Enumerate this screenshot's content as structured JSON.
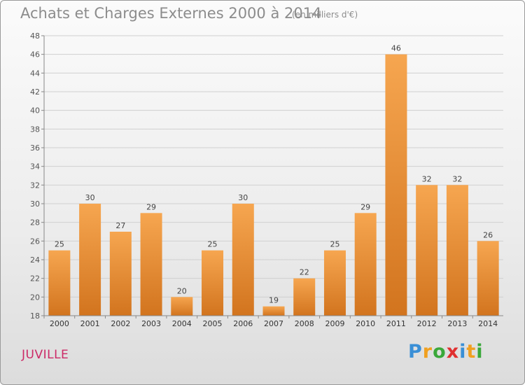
{
  "header": {
    "title": "Achats et Charges Externes 2000 à 2014",
    "subtitle": "(en milliers d'€)"
  },
  "footer": {
    "commune": "JUVILLE",
    "logo_letters": [
      {
        "ch": "P",
        "color": "#3a8fd6"
      },
      {
        "ch": "r",
        "color": "#f0a020"
      },
      {
        "ch": "o",
        "color": "#3aa83a"
      },
      {
        "ch": "x",
        "color": "#e03030"
      },
      {
        "ch": "i",
        "color": "#3a8fd6"
      },
      {
        "ch": "t",
        "color": "#f0a020"
      },
      {
        "ch": "i",
        "color": "#3aa83a"
      }
    ]
  },
  "chart_data": {
    "type": "bar",
    "title": "Achats et Charges Externes 2000 à 2014",
    "subtitle": "(en milliers d'€)",
    "xlabel": "",
    "ylabel": "",
    "categories": [
      "2000",
      "2001",
      "2002",
      "2003",
      "2004",
      "2005",
      "2006",
      "2007",
      "2008",
      "2009",
      "2010",
      "2011",
      "2012",
      "2013",
      "2014"
    ],
    "values": [
      25,
      30,
      27,
      29,
      20,
      25,
      30,
      19,
      22,
      25,
      29,
      46,
      32,
      32,
      26
    ],
    "ylim": [
      18,
      48
    ],
    "yticks": [
      18,
      20,
      22,
      24,
      26,
      28,
      30,
      32,
      34,
      36,
      38,
      40,
      42,
      44,
      46,
      48
    ],
    "grid": true,
    "legend": "none",
    "bar_color": "#f0943a",
    "bar_color_dark": "#d2741e"
  }
}
